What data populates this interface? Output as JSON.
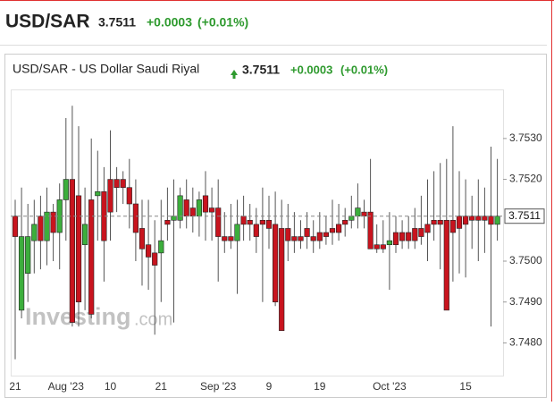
{
  "header": {
    "symbol": "USD/SAR",
    "price": "3.7511",
    "change": "+0.0003",
    "change_pct": "(+0.01%)"
  },
  "chart_data": {
    "type": "candlestick",
    "title": "USD/SAR - US Dollar Saudi Riyal",
    "watermark": "Investing",
    "watermark_suffix": ".com",
    "last_price": 3.7511,
    "up_color": "#3cae3c",
    "down_color": "#c8141e",
    "ylim": [
      3.7472,
      3.7542
    ],
    "yticks": [
      {
        "value": 3.748,
        "label": "3.7480"
      },
      {
        "value": 3.749,
        "label": "3.7490"
      },
      {
        "value": 3.75,
        "label": "3.7500"
      },
      {
        "value": 3.752,
        "label": "3.7520"
      },
      {
        "value": 3.753,
        "label": "3.7530"
      }
    ],
    "categories": [
      "21",
      null,
      null,
      null,
      null,
      null,
      null,
      null,
      "Aug '23",
      null,
      null,
      null,
      null,
      null,
      null,
      "10",
      null,
      null,
      null,
      null,
      null,
      null,
      null,
      "21",
      null,
      null,
      null,
      null,
      null,
      null,
      null,
      null,
      "Sep '23",
      null,
      null,
      null,
      null,
      null,
      null,
      null,
      "9",
      null,
      null,
      null,
      null,
      null,
      null,
      null,
      "19",
      null,
      null,
      null,
      null,
      null,
      null,
      null,
      null,
      null,
      null,
      "Oct '23",
      null,
      null,
      null,
      null,
      null,
      null,
      null,
      null,
      null,
      null,
      null,
      "15",
      null,
      null,
      null,
      null,
      null
    ],
    "open": [
      3.7511,
      3.7488,
      3.7497,
      3.7505,
      3.7511,
      3.7505,
      3.7512,
      3.7507,
      3.7515,
      3.752,
      3.7516,
      3.7504,
      3.7515,
      3.7516,
      3.7517,
      3.752,
      3.752,
      3.752,
      3.7518,
      3.7514,
      3.7508,
      3.7504,
      3.7502,
      3.7502,
      3.751,
      3.751,
      3.751,
      3.7515,
      3.7513,
      3.7511,
      3.7516,
      3.7513,
      3.7513,
      3.7506,
      3.7506,
      3.7505,
      3.7511,
      3.751,
      3.7509,
      3.751,
      3.751,
      3.7509,
      3.7508,
      3.7508,
      3.7506,
      3.7506,
      3.7508,
      3.7506,
      3.7507,
      3.7507,
      3.7508,
      3.7509,
      3.751,
      3.751,
      3.7511,
      3.7512,
      3.7512,
      3.7504,
      3.7504,
      3.7504,
      3.7507,
      3.7507,
      3.7507,
      3.7508,
      3.7508,
      3.7509,
      3.751,
      3.751,
      3.751,
      3.751,
      3.7511,
      3.7511,
      3.7511,
      3.7511,
      3.7511,
      3.7511,
      3.7509
    ],
    "high": [
      3.7515,
      3.7518,
      3.7514,
      3.7515,
      3.7516,
      3.7518,
      3.7514,
      3.7519,
      3.7535,
      3.7538,
      3.7533,
      3.7518,
      3.753,
      3.7527,
      3.7523,
      3.7532,
      3.7523,
      3.7522,
      3.7525,
      3.752,
      3.7515,
      3.7515,
      3.751,
      3.7515,
      3.7518,
      3.752,
      3.7518,
      3.752,
      3.7518,
      3.7517,
      3.7522,
      3.7518,
      3.752,
      3.7512,
      3.7514,
      3.7515,
      3.7516,
      3.7514,
      3.7513,
      3.7518,
      3.7516,
      3.7517,
      3.7515,
      3.7514,
      3.7512,
      3.751,
      3.7512,
      3.751,
      3.7512,
      3.7511,
      3.7515,
      3.7514,
      3.7513,
      3.7516,
      3.7519,
      3.7515,
      3.7525,
      3.7509,
      3.751,
      3.7512,
      3.7511,
      3.751,
      3.7511,
      3.7513,
      3.7516,
      3.752,
      3.7522,
      3.7524,
      3.7525,
      3.7533,
      3.7522,
      3.752,
      3.7516,
      3.752,
      3.7518,
      3.7528,
      3.7525
    ],
    "low": [
      3.7476,
      3.7486,
      3.749,
      3.7497,
      3.7498,
      3.7499,
      3.75,
      3.7498,
      3.7505,
      3.7484,
      3.7484,
      3.7488,
      3.7486,
      3.7505,
      3.7495,
      3.7505,
      3.7512,
      3.7514,
      3.7508,
      3.75,
      3.7494,
      3.7493,
      3.7482,
      3.749,
      3.7505,
      3.7485,
      3.7508,
      3.7508,
      3.7507,
      3.7506,
      3.7505,
      3.7505,
      3.7495,
      3.7502,
      3.7503,
      3.7492,
      3.7505,
      3.7505,
      3.7502,
      3.749,
      3.7503,
      3.7489,
      3.7483,
      3.75,
      3.7502,
      3.7503,
      3.7503,
      3.7502,
      3.7503,
      3.7504,
      3.7504,
      3.7505,
      3.7506,
      3.7508,
      3.7508,
      3.7508,
      3.7503,
      3.7502,
      3.7502,
      3.7493,
      3.7502,
      3.7503,
      3.7503,
      3.7503,
      3.7504,
      3.75,
      3.7505,
      3.7498,
      3.7488,
      3.7495,
      3.7497,
      3.7496,
      3.7503,
      3.75,
      3.7502,
      3.7484,
      3.7505
    ],
    "close": [
      3.7506,
      3.7506,
      3.7506,
      3.7509,
      3.7505,
      3.7512,
      3.7507,
      3.7515,
      3.752,
      3.7485,
      3.749,
      3.7509,
      3.7487,
      3.7517,
      3.7505,
      3.7512,
      3.7518,
      3.7518,
      3.7514,
      3.7507,
      3.7503,
      3.7501,
      3.7499,
      3.7505,
      3.7509,
      3.7511,
      3.7516,
      3.7511,
      3.7511,
      3.7515,
      3.7512,
      3.7512,
      3.7506,
      3.7505,
      3.7505,
      3.7509,
      3.7509,
      3.7509,
      3.7506,
      3.7509,
      3.7508,
      3.749,
      3.7483,
      3.7505,
      3.7505,
      3.7505,
      3.7506,
      3.7505,
      3.7505,
      3.7506,
      3.7507,
      3.7507,
      3.7509,
      3.7511,
      3.7513,
      3.7511,
      3.7503,
      3.7503,
      3.7503,
      3.7505,
      3.7504,
      3.7505,
      3.7505,
      3.7505,
      3.7506,
      3.7507,
      3.7509,
      3.7509,
      3.7488,
      3.7507,
      3.7508,
      3.7509,
      3.751,
      3.751,
      3.751,
      3.7509,
      3.7511
    ]
  }
}
